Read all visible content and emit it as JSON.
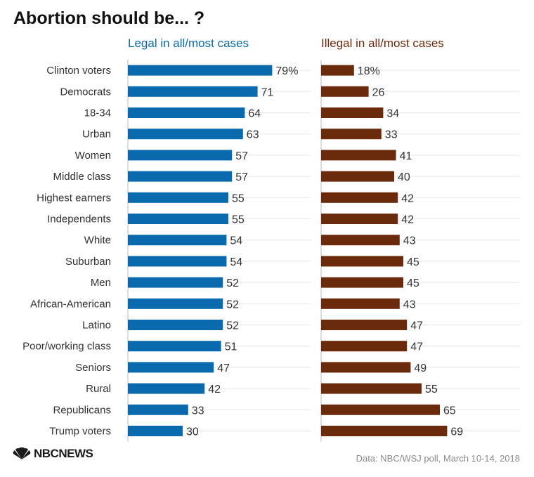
{
  "title": "Abortion should be... ?",
  "source": "Data: NBC/WSJ poll, March 10-14, 2018",
  "logo": {
    "text": "NBCNEWS",
    "icon": "nbc-peacock-icon"
  },
  "colors": {
    "legal": "#0a6aad",
    "illegal": "#6b2a0c",
    "label": "#333333",
    "grid": "#e6e6e6",
    "axis": "#bbbbbb"
  },
  "chart_data": {
    "type": "bar",
    "categories": [
      "Clinton voters",
      "Democrats",
      "18-34",
      "Urban",
      "Women",
      "Middle class",
      "Highest earners",
      "Independents",
      "White",
      "Suburban",
      "Men",
      "African-American",
      "Latino",
      "Poor/working class",
      "Seniors",
      "Rural",
      "Republicans",
      "Trump voters"
    ],
    "series": [
      {
        "name": "Legal in all/most cases",
        "values": [
          79,
          71,
          64,
          63,
          57,
          57,
          55,
          55,
          54,
          54,
          52,
          52,
          52,
          51,
          47,
          42,
          33,
          30
        ],
        "labels": [
          "79%",
          "71",
          "64",
          "63",
          "57",
          "57",
          "55",
          "55",
          "54",
          "54",
          "52",
          "52",
          "52",
          "51",
          "47",
          "42",
          "33",
          "30"
        ]
      },
      {
        "name": "Illegal in all/most cases",
        "values": [
          18,
          26,
          34,
          33,
          41,
          40,
          42,
          42,
          43,
          45,
          45,
          43,
          47,
          47,
          49,
          55,
          65,
          69
        ],
        "labels": [
          "18%",
          "26",
          "34",
          "33",
          "41",
          "40",
          "42",
          "42",
          "43",
          "45",
          "45",
          "43",
          "47",
          "47",
          "49",
          "55",
          "65",
          "69"
        ]
      }
    ],
    "orientation": "horizontal",
    "xlim": [
      0,
      100
    ],
    "grid": true,
    "legend": "panel titles above each panel"
  }
}
